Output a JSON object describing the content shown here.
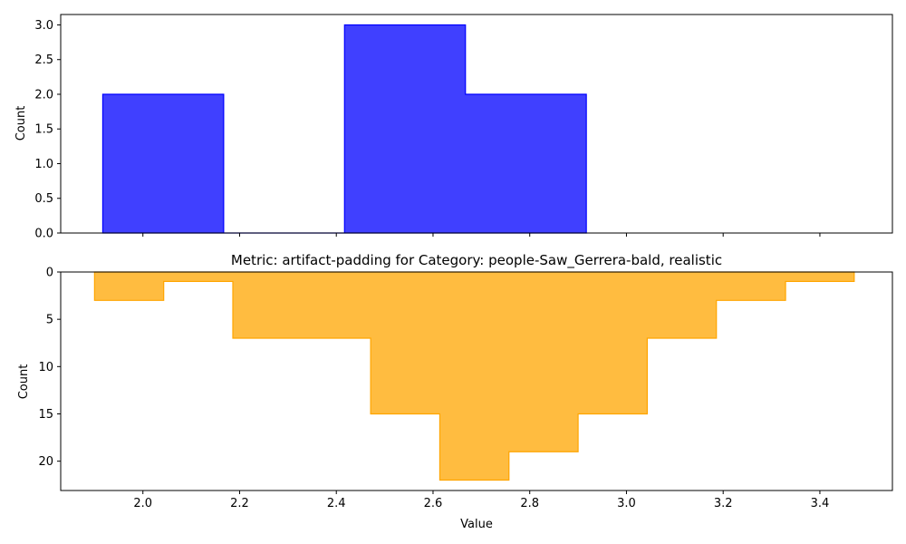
{
  "chart_data": [
    {
      "type": "histogram-step",
      "title": "",
      "xlabel": "",
      "ylabel": "Count",
      "color": "#0000ff",
      "fill_alpha": 0.75,
      "bin_edges": [
        1.917,
        2.167,
        2.417,
        2.667,
        2.917
      ],
      "counts": [
        2,
        0,
        3,
        2
      ],
      "xlim": [
        1.83,
        3.55
      ],
      "ylim": [
        0,
        3.15
      ],
      "yticks": [
        0.0,
        0.5,
        1.0,
        1.5,
        2.0,
        2.5,
        3.0
      ],
      "ytick_labels": [
        "0.0",
        "0.5",
        "1.0",
        "1.5",
        "2.0",
        "2.5",
        "3.0"
      ],
      "xticks": [
        2.0,
        2.2,
        2.4,
        2.6,
        2.8,
        3.0,
        3.2,
        3.4
      ],
      "show_xtick_labels": false,
      "y_inverted": false
    },
    {
      "type": "histogram-step",
      "title": "Metric: artifact-padding for Category: people-Saw_Gerrera-bald, realistic",
      "xlabel": "Value",
      "ylabel": "Count",
      "color": "#ffa500",
      "fill_alpha": 0.75,
      "bin_edges": [
        1.9,
        2.043,
        2.186,
        2.329,
        2.471,
        2.614,
        2.757,
        2.9,
        3.043,
        3.186,
        3.329,
        3.471
      ],
      "counts": [
        3,
        1,
        7,
        7,
        15,
        22,
        19,
        15,
        7,
        3,
        1
      ],
      "xlim": [
        1.83,
        3.55
      ],
      "ylim": [
        0,
        23.1
      ],
      "yticks": [
        0,
        5,
        10,
        15,
        20
      ],
      "ytick_labels": [
        "0",
        "5",
        "10",
        "15",
        "20"
      ],
      "xticks": [
        2.0,
        2.2,
        2.4,
        2.6,
        2.8,
        3.0,
        3.2,
        3.4
      ],
      "xtick_labels": [
        "2.0",
        "2.2",
        "2.4",
        "2.6",
        "2.8",
        "3.0",
        "3.2",
        "3.4"
      ],
      "show_xtick_labels": true,
      "y_inverted": true
    }
  ]
}
